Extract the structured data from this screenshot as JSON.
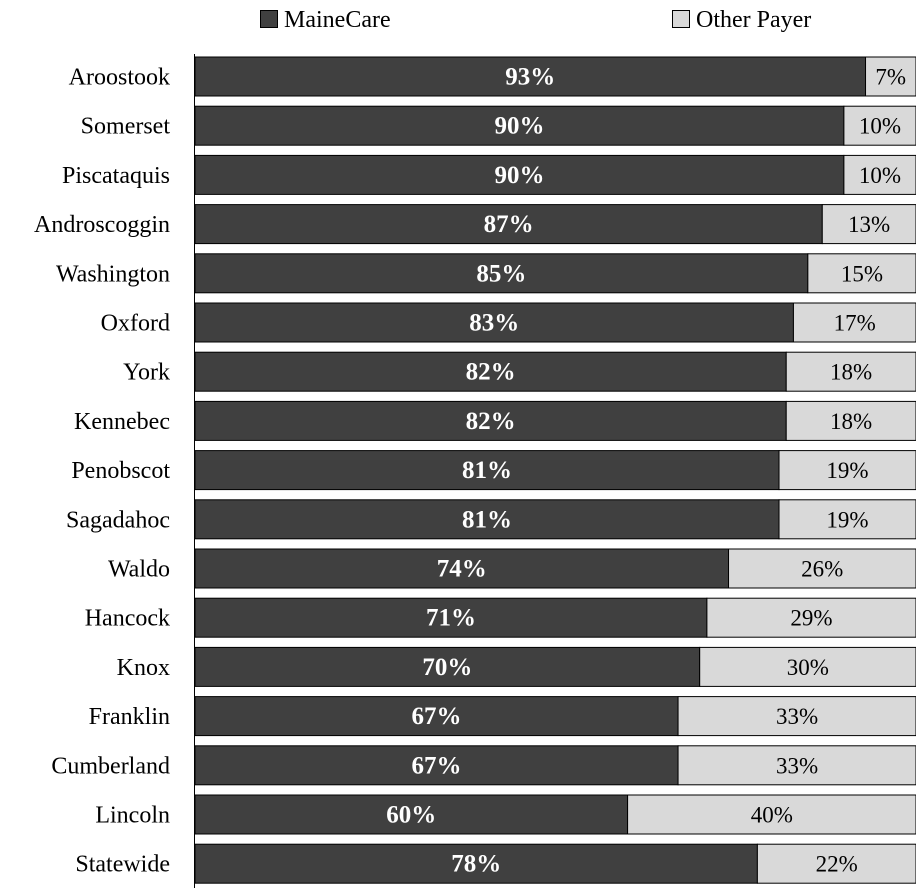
{
  "chart_data": {
    "type": "bar",
    "orientation": "horizontal",
    "stacked": true,
    "categories": [
      "Aroostook",
      "Somerset",
      "Piscataquis",
      "Androscoggin",
      "Washington",
      "Oxford",
      "York",
      "Kennebec",
      "Penobscot",
      "Sagadahoc",
      "Waldo",
      "Hancock",
      "Knox",
      "Franklin",
      "Cumberland",
      "Lincoln",
      "Statewide"
    ],
    "series": [
      {
        "name": "MaineCare",
        "color": "#404040",
        "values": [
          93,
          90,
          90,
          87,
          85,
          83,
          82,
          82,
          81,
          81,
          74,
          71,
          70,
          67,
          67,
          60,
          78
        ]
      },
      {
        "name": "Other Payer",
        "color": "#d9d9d9",
        "values": [
          7,
          10,
          10,
          13,
          15,
          17,
          18,
          18,
          19,
          19,
          26,
          29,
          30,
          33,
          33,
          40,
          22
        ]
      }
    ],
    "value_format": "{v}%",
    "xlim": [
      0,
      100
    ],
    "legend": "top",
    "grid": false
  }
}
